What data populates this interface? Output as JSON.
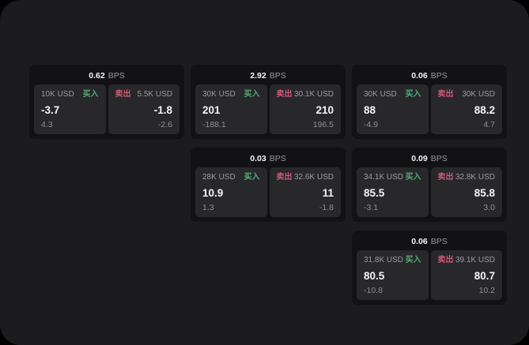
{
  "labels": {
    "bps_unit": "BPS",
    "buy": "买入",
    "sell": "卖出"
  },
  "colors": {
    "panel_bg": "#1c1c1e",
    "card_bg": "#121214",
    "subpanel_bg": "#28282b",
    "buy": "#4fae73",
    "sell": "#cd5a73",
    "primary_text": "#f4f4f5",
    "muted_text": "#98989b"
  },
  "cards": [
    {
      "bps": "0.62",
      "layout": {
        "row": 1,
        "col": 1
      },
      "buy": {
        "amount": "10K USD",
        "price": "-3.7",
        "change": "4.3"
      },
      "sell": {
        "amount": "5.5K USD",
        "price": "-1.8",
        "change": "-2.6"
      }
    },
    {
      "bps": "2.92",
      "layout": {
        "row": 1,
        "col": 2
      },
      "buy": {
        "amount": "30K USD",
        "price": "201",
        "change": "-188.1"
      },
      "sell": {
        "amount": "30.1K USD",
        "price": "210",
        "change": "196.5"
      }
    },
    {
      "bps": "0.06",
      "layout": {
        "row": 1,
        "col": 3
      },
      "buy": {
        "amount": "30K USD",
        "price": "88",
        "change": "-4.9"
      },
      "sell": {
        "amount": "30K USD",
        "price": "88.2",
        "change": "4.7"
      }
    },
    {
      "bps": "0.03",
      "layout": {
        "row": 2,
        "col": 2
      },
      "buy": {
        "amount": "28K USD",
        "price": "10.9",
        "change": "1.3"
      },
      "sell": {
        "amount": "32.6K USD",
        "price": "11",
        "change": "-1.8"
      }
    },
    {
      "bps": "0.09",
      "layout": {
        "row": 2,
        "col": 3
      },
      "buy": {
        "amount": "34.1K USD",
        "price": "85.5",
        "change": "-3.1"
      },
      "sell": {
        "amount": "32.8K USD",
        "price": "85.8",
        "change": "3.0"
      }
    },
    {
      "bps": "0.06",
      "layout": {
        "row": 3,
        "col": 3
      },
      "buy": {
        "amount": "31.8K USD",
        "price": "80.5",
        "change": "-10.8"
      },
      "sell": {
        "amount": "39.1K USD",
        "price": "80.7",
        "change": "10.2"
      }
    }
  ]
}
